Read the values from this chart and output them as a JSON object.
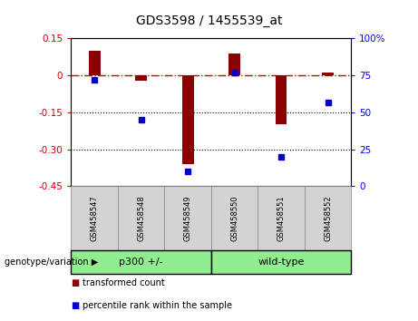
{
  "title": "GDS3598 / 1455539_at",
  "samples": [
    "GSM458547",
    "GSM458548",
    "GSM458549",
    "GSM458550",
    "GSM458551",
    "GSM458552"
  ],
  "transformed_counts": [
    0.1,
    -0.02,
    -0.36,
    0.09,
    -0.2,
    0.01
  ],
  "percentile_ranks": [
    72,
    45,
    10,
    77,
    20,
    57
  ],
  "groups": [
    {
      "label": "p300 +/-",
      "start": 0,
      "end": 3,
      "color": "#90EE90"
    },
    {
      "label": "wild-type",
      "start": 3,
      "end": 6,
      "color": "#90EE90"
    }
  ],
  "bar_color": "#8B0000",
  "dot_color": "#0000CD",
  "hline_color": "#CC0000",
  "dotted_lines": [
    -0.15,
    -0.3
  ],
  "ylim_left": [
    -0.45,
    0.15
  ],
  "ylim_right": [
    0,
    100
  ],
  "yticks_left": [
    0.15,
    0,
    -0.15,
    -0.3,
    -0.45
  ],
  "yticks_right": [
    100,
    75,
    50,
    25,
    0
  ],
  "ytick_labels_left": [
    "0.15",
    "0",
    "-0.15",
    "-0.30",
    "-0.45"
  ],
  "ytick_labels_right": [
    "100%",
    "75",
    "50",
    "25",
    "0"
  ],
  "legend_items": [
    "transformed count",
    "percentile rank within the sample"
  ],
  "group_label_text": "genotype/variation",
  "background_color": "#ffffff",
  "bar_width": 0.25
}
